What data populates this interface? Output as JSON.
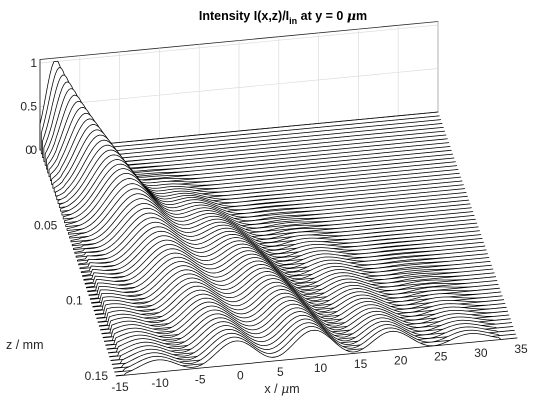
{
  "chart_data": {
    "type": "waterfall",
    "title": {
      "prefix": "Intensity I(x,z)/I",
      "subscript": "in",
      "suffix_before_mu": " at y = 0 ",
      "mu": "μ",
      "suffix": "m"
    },
    "xlabel": {
      "prefix": "x / ",
      "mu": "μ",
      "suffix": "m"
    },
    "zlabel": "z / mm",
    "x_ticks": [
      "-15",
      "-10",
      "-5",
      "0",
      "5",
      "10",
      "15",
      "20",
      "25",
      "30",
      "35"
    ],
    "z_ticks": [
      "0",
      "0.05",
      "0.1",
      "0.15"
    ],
    "y_ticks": [
      "0",
      "0.5",
      "1"
    ],
    "xlim": [
      -15,
      35
    ],
    "zlim": [
      0,
      0.15
    ],
    "ylim": [
      0,
      1
    ],
    "grid": true,
    "line_color": "#000000",
    "fill_color": "#ffffff",
    "series_description": "input beam centered at x ≈ -13 μm with peak 1 at z = 0; intensity spreads with z into multiple self-imaging lobes across x = -13 to 32 μm",
    "input_beam": {
      "x_center": -13,
      "width": 1.8,
      "peak": 1.0
    },
    "slices": 60
  }
}
